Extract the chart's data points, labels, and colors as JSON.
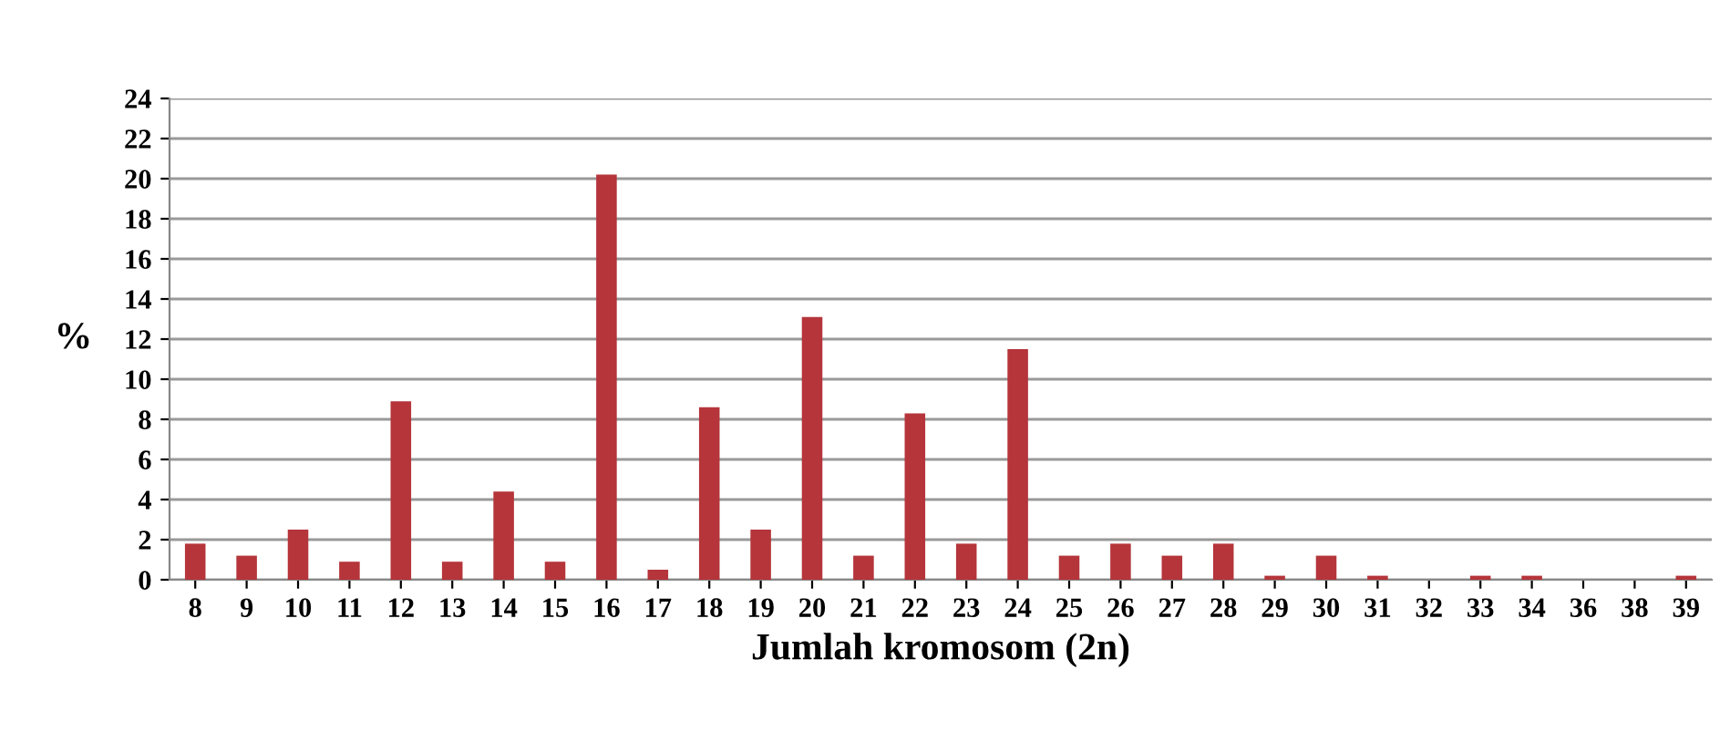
{
  "chart_data": {
    "type": "bar",
    "xlabel": "Jumlah kromosom (2n)",
    "ylabel": "%",
    "categories": [
      "8",
      "9",
      "10",
      "11",
      "12",
      "13",
      "14",
      "15",
      "16",
      "17",
      "18",
      "19",
      "20",
      "21",
      "22",
      "23",
      "24",
      "25",
      "26",
      "27",
      "28",
      "29",
      "30",
      "31",
      "32",
      "33",
      "34",
      "36",
      "38",
      "39"
    ],
    "values": [
      1.8,
      1.2,
      2.5,
      0.9,
      8.9,
      0.9,
      4.4,
      0.9,
      20.2,
      0.5,
      8.6,
      2.5,
      13.1,
      1.2,
      8.3,
      1.8,
      11.5,
      1.2,
      1.8,
      1.2,
      1.8,
      0.2,
      1.2,
      0.2,
      0,
      0.2,
      0.2,
      0,
      0,
      0.2
    ],
    "color": "#b5353a",
    "ylim": [
      0,
      24
    ],
    "yticks": [
      0,
      2,
      4,
      6,
      8,
      10,
      12,
      14,
      16,
      18,
      20,
      22,
      24
    ],
    "grid": "y"
  }
}
